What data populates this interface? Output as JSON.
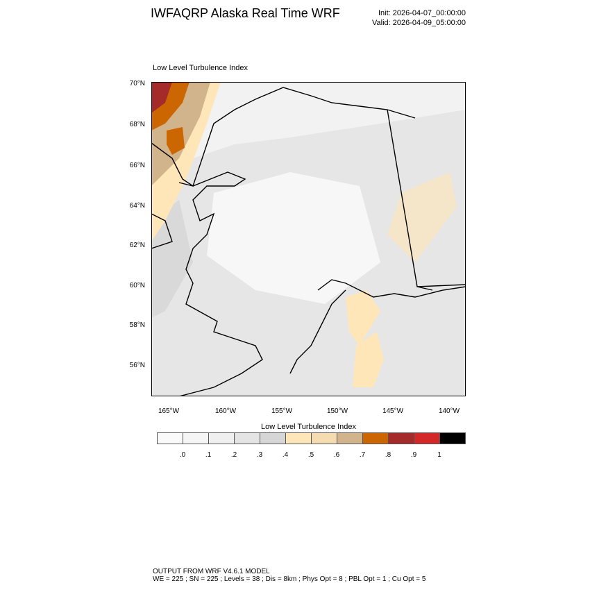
{
  "header": {
    "title": "IWFAQRP Alaska Real Time WRF",
    "init": "Init: 2026-04-07_00:00:00",
    "valid": "Valid: 2026-04-09_05:00:00"
  },
  "plot": {
    "subtitle": "Low Level Turbulence Index",
    "lat_labels": [
      "70°N",
      "68°N",
      "66°N",
      "64°N",
      "62°N",
      "60°N",
      "58°N",
      "56°N"
    ],
    "lon_labels": [
      "165°W",
      "160°W",
      "155°W",
      "150°W",
      "145°W",
      "140°W"
    ]
  },
  "colorbar": {
    "title": "Low Level Turbulence Index",
    "labels": [
      ".0",
      ".1",
      ".2",
      ".3",
      ".4",
      ".5",
      ".6",
      ".7",
      ".8",
      ".9",
      "1"
    ],
    "colors": [
      "#fafafa",
      "#f5f5f5",
      "#efefef",
      "#e4e4e4",
      "#d6d6d6",
      "#ffe6b8",
      "#f5dcb0",
      "#d2b48c",
      "#cc6600",
      "#a52a2a",
      "#d22828",
      "#000000"
    ]
  },
  "footer": {
    "line1": "OUTPUT FROM WRF V4.6.1 MODEL",
    "line2": "WE = 225 ; SN = 225 ; Levels = 38 ; Dis = 8km ; Phys Opt = 8 ; PBL Opt = 1 ; Cu Opt = 5"
  }
}
